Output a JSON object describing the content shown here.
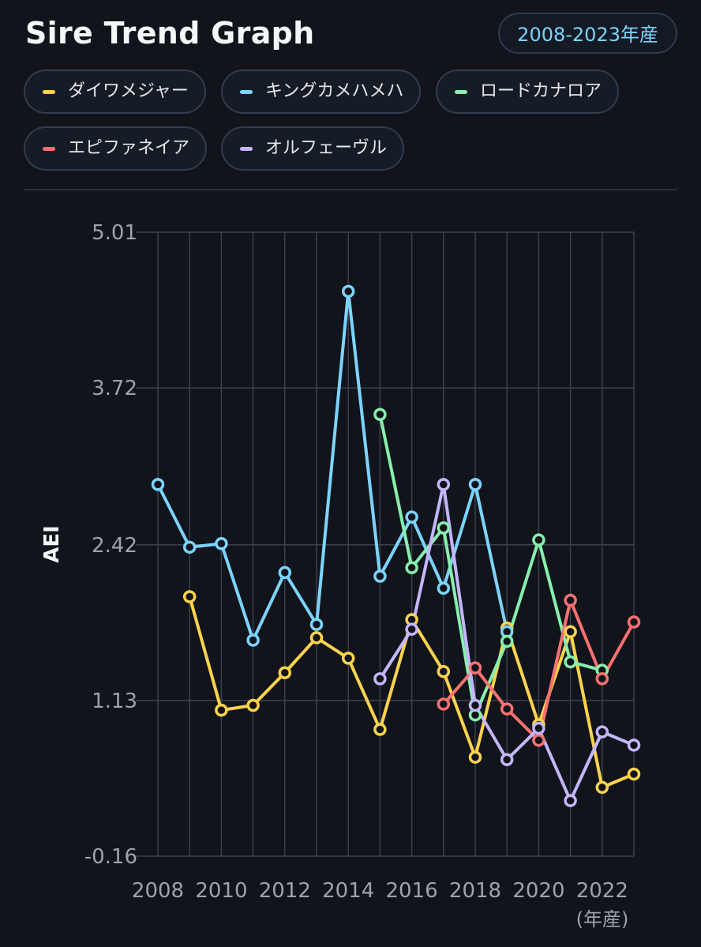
{
  "header": {
    "title": "Sire Trend Graph",
    "range_badge": "2008-2023年産"
  },
  "colors": {
    "background": "#11141b",
    "grid": "#3a4150",
    "tick_text": "#9ca3af"
  },
  "chart_data": {
    "type": "line",
    "ylabel": "AEI",
    "xunit": "(年産)",
    "x": [
      2008,
      2009,
      2010,
      2011,
      2012,
      2013,
      2014,
      2015,
      2016,
      2017,
      2018,
      2019,
      2020,
      2021,
      2022,
      2023
    ],
    "x_tick_labels": [
      "2008",
      "2010",
      "2012",
      "2014",
      "2016",
      "2018",
      "2020",
      "2022"
    ],
    "y_ticks": [
      5.01,
      3.72,
      2.42,
      1.13,
      -0.16
    ],
    "y_tick_labels": [
      "5.01",
      "3.72",
      "2.42",
      "1.13",
      "-0.16"
    ],
    "ylim": [
      -0.16,
      5.01
    ],
    "grid": true,
    "legend_position": "top",
    "series": [
      {
        "name": "ダイワメジャー",
        "color": "#fcd34d",
        "values": [
          null,
          1.99,
          1.05,
          1.09,
          1.36,
          1.65,
          1.48,
          0.89,
          1.8,
          1.37,
          0.66,
          1.73,
          0.93,
          1.7,
          0.41,
          0.52
        ]
      },
      {
        "name": "キングカメハメハ",
        "color": "#7dd3fc",
        "values": [
          2.92,
          2.4,
          2.43,
          1.63,
          2.19,
          1.76,
          4.52,
          2.16,
          2.65,
          2.06,
          2.92,
          1.7,
          null,
          null,
          null,
          null
        ]
      },
      {
        "name": "ロードカナロア",
        "color": "#86efac",
        "values": [
          null,
          null,
          null,
          null,
          null,
          null,
          null,
          3.5,
          2.23,
          2.56,
          1.01,
          1.62,
          2.46,
          1.45,
          1.38,
          null
        ]
      },
      {
        "name": "エピファネイア",
        "color": "#f87171",
        "values": [
          null,
          null,
          null,
          null,
          null,
          null,
          null,
          null,
          null,
          1.1,
          1.4,
          1.06,
          0.8,
          1.96,
          1.31,
          1.78
        ]
      },
      {
        "name": "オルフェーヴル",
        "color": "#c4b5fd",
        "values": [
          null,
          null,
          null,
          null,
          null,
          null,
          null,
          1.31,
          1.72,
          2.92,
          1.09,
          0.64,
          0.9,
          0.3,
          0.87,
          0.76
        ]
      }
    ]
  }
}
